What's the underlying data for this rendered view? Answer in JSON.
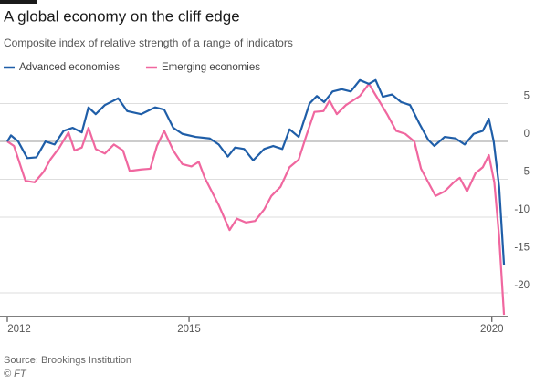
{
  "chart_data": {
    "type": "line",
    "title": "A global economy on the cliff edge",
    "subtitle": "Composite index of relative strength of a range of indicators",
    "source": "Source: Brookings Institution",
    "credit": "© FT",
    "legend": "top-left",
    "grid": true,
    "xlim": [
      2012,
      2020.35
    ],
    "xticks": [
      2012,
      2015,
      2020
    ],
    "ylim": [
      -23,
      8.5
    ],
    "yticks": [
      5,
      0,
      -5,
      -10,
      -15,
      -20
    ],
    "series": [
      {
        "name": "Advanced economies",
        "color": "#1f5ea8",
        "x": [
          2012.0,
          2012.06,
          2012.18,
          2012.33,
          2012.48,
          2012.63,
          2012.78,
          2012.93,
          2013.08,
          2013.23,
          2013.34,
          2013.46,
          2013.61,
          2013.83,
          2013.98,
          2014.21,
          2014.44,
          2014.59,
          2014.74,
          2014.89,
          2015.11,
          2015.34,
          2015.49,
          2015.64,
          2015.76,
          2015.91,
          2016.06,
          2016.24,
          2016.39,
          2016.54,
          2016.66,
          2016.81,
          2016.99,
          2017.11,
          2017.23,
          2017.37,
          2017.52,
          2017.67,
          2017.82,
          2017.97,
          2018.08,
          2018.2,
          2018.35,
          2018.5,
          2018.65,
          2018.8,
          2018.95,
          2019.05,
          2019.22,
          2019.4,
          2019.55,
          2019.7,
          2019.85,
          2019.95,
          2020.03,
          2020.12,
          2020.2
        ],
        "values": [
          0,
          0.8,
          0,
          -2.2,
          -2.1,
          0,
          -0.4,
          1.4,
          1.8,
          1.2,
          4.5,
          3.6,
          4.8,
          5.7,
          4,
          3.6,
          4.5,
          4.2,
          1.8,
          1,
          0.6,
          0.4,
          -0.4,
          -2,
          -0.8,
          -1,
          -2.5,
          -1,
          -0.6,
          -1,
          1.6,
          0.6,
          5,
          6,
          5.2,
          6.6,
          6.9,
          6.6,
          8.1,
          7.6,
          8.1,
          5.9,
          6.2,
          5.2,
          4.8,
          2.4,
          0.2,
          -0.6,
          0.6,
          0.4,
          -0.4,
          1,
          1.4,
          3,
          0,
          -6,
          -16.3
        ]
      },
      {
        "name": "Emerging economies",
        "color": "#f0679f",
        "x": [
          2012.0,
          2012.11,
          2012.3,
          2012.45,
          2012.6,
          2012.71,
          2012.86,
          2013.01,
          2013.11,
          2013.23,
          2013.34,
          2013.46,
          2013.61,
          2013.76,
          2013.91,
          2014.02,
          2014.21,
          2014.36,
          2014.47,
          2014.59,
          2014.74,
          2014.89,
          2015.04,
          2015.16,
          2015.26,
          2015.49,
          2015.67,
          2015.79,
          2015.94,
          2016.09,
          2016.24,
          2016.36,
          2016.51,
          2016.66,
          2016.81,
          2016.93,
          2017.07,
          2017.22,
          2017.32,
          2017.44,
          2017.59,
          2017.82,
          2017.97,
          2018.09,
          2018.27,
          2018.42,
          2018.57,
          2018.72,
          2018.83,
          2018.95,
          2019.07,
          2019.22,
          2019.37,
          2019.47,
          2019.59,
          2019.73,
          2019.85,
          2019.95,
          2020.04,
          2020.12,
          2020.2
        ],
        "values": [
          0,
          -0.6,
          -5.2,
          -5.4,
          -4,
          -2.4,
          -0.8,
          1.2,
          -1.2,
          -0.8,
          1.8,
          -1,
          -1.6,
          -0.4,
          -1.2,
          -3.9,
          -3.7,
          -3.6,
          -0.6,
          1.4,
          -1.2,
          -3,
          -3.3,
          -2.7,
          -4.8,
          -8.4,
          -11.7,
          -10.2,
          -10.7,
          -10.5,
          -9,
          -7.2,
          -6,
          -3.4,
          -2.4,
          0.6,
          3.9,
          4,
          5.4,
          3.6,
          4.8,
          6,
          7.6,
          6,
          3.6,
          1.4,
          1,
          0,
          -3.6,
          -5.4,
          -7.2,
          -6.6,
          -5.4,
          -4.8,
          -6.6,
          -4.2,
          -3.4,
          -1.8,
          -5.4,
          -12.6,
          -22.9
        ]
      }
    ]
  }
}
